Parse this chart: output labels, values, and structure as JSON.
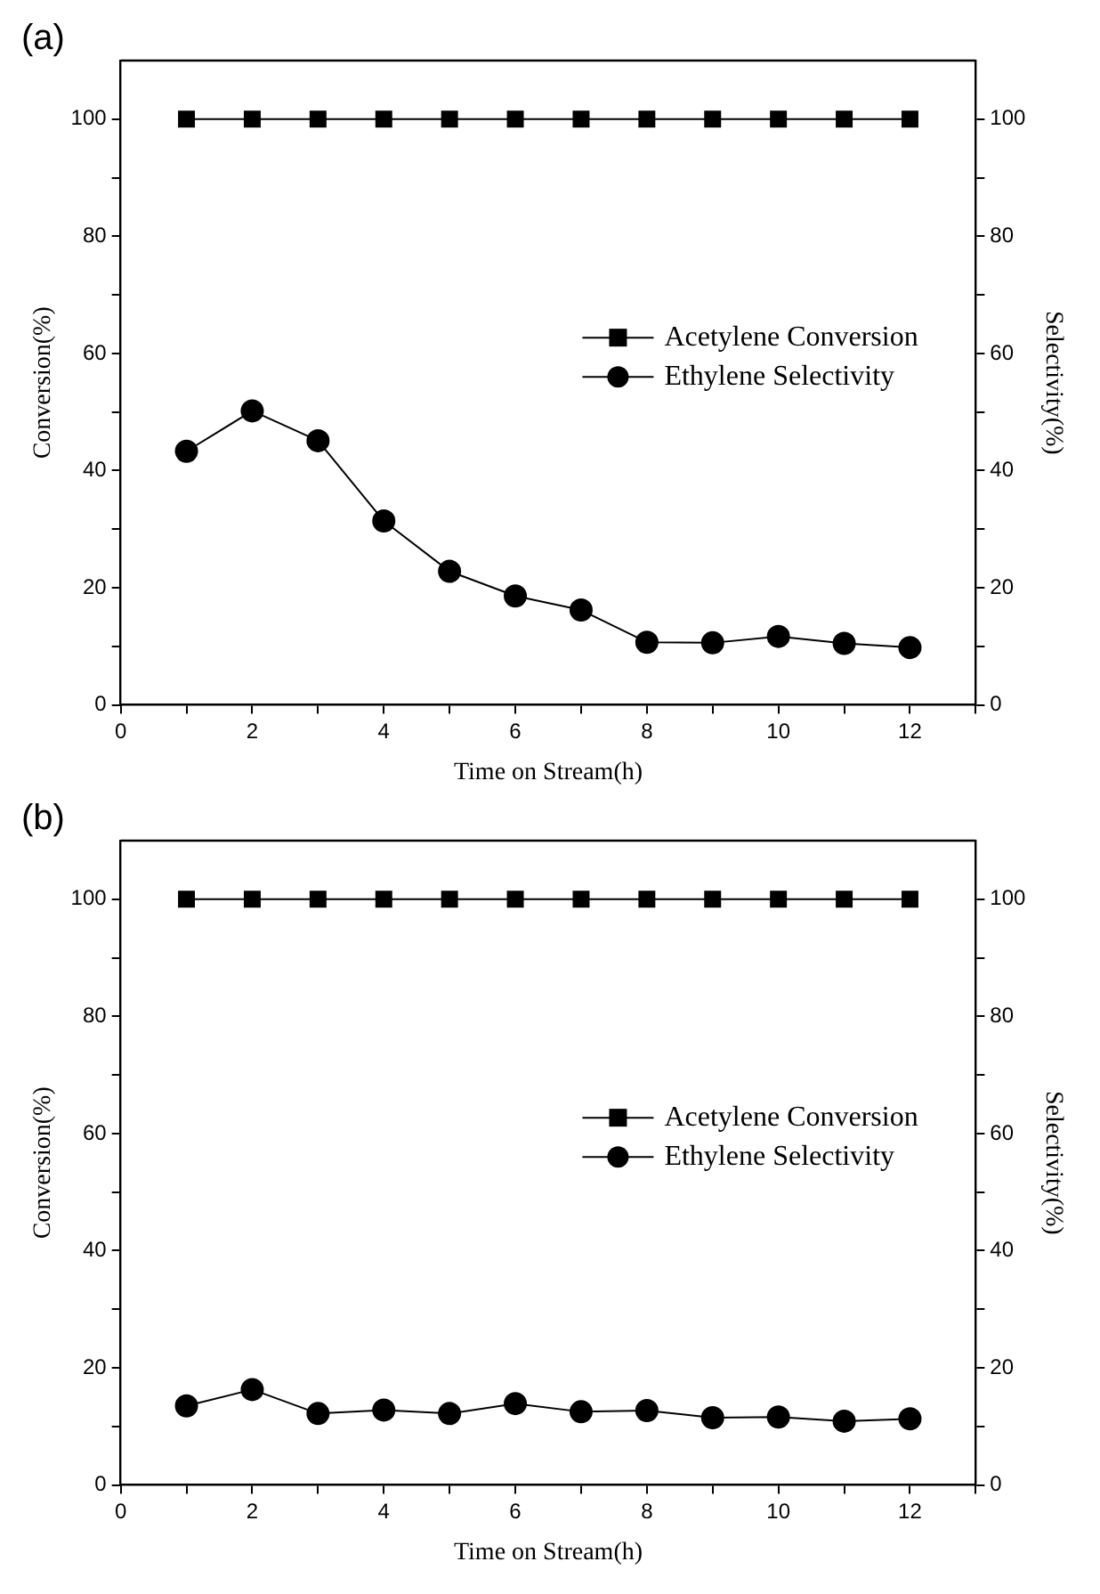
{
  "chart_data": [
    {
      "type": "line",
      "title": "(a)",
      "xlabel": "Time on Stream(h)",
      "ylabel": "Conversion(%)",
      "y2label": "Selectivity(%)",
      "x": [
        1,
        2,
        3,
        4,
        5,
        6,
        7,
        8,
        9,
        10,
        11,
        12
      ],
      "series": [
        {
          "name": "Acetylene Conversion",
          "color": "#000000",
          "marker": "square",
          "values": [
            100,
            100,
            100,
            100,
            100,
            100,
            100,
            100,
            100,
            100,
            100,
            100
          ]
        },
        {
          "name": "Ethylene Selectivity",
          "color": "#000000",
          "marker": "circle",
          "values": [
            43.3,
            50.2,
            45.1,
            31.4,
            22.8,
            18.6,
            16.2,
            10.7,
            10.6,
            11.7,
            10.5,
            9.8
          ]
        }
      ],
      "xlim": [
        0,
        13
      ],
      "xticks": [
        0,
        {
          "value": 1,
          "label": null
        },
        2,
        {
          "value": 3,
          "label": null
        },
        4,
        {
          "value": 5,
          "label": null
        },
        6,
        {
          "value": 7,
          "label": null
        },
        8,
        {
          "value": 9,
          "label": null
        },
        10,
        {
          "value": 11,
          "label": null
        },
        12,
        {
          "value": 13,
          "label": null
        }
      ],
      "ylim": [
        0,
        110
      ],
      "yticks": [
        0,
        {
          "value": 10,
          "label": null
        },
        20,
        {
          "value": 30,
          "label": null
        },
        40,
        {
          "value": 50,
          "label": null
        },
        60,
        {
          "value": 70,
          "label": null
        },
        80,
        {
          "value": 90,
          "label": null
        },
        100
      ],
      "y2lim": [
        0,
        110
      ],
      "y2ticks": [
        0,
        {
          "value": 10,
          "label": null
        },
        20,
        {
          "value": 30,
          "label": null
        },
        40,
        {
          "value": 50,
          "label": null
        },
        60,
        {
          "value": 70,
          "label": null
        },
        80,
        {
          "value": 90,
          "label": null
        },
        100
      ],
      "grid": false,
      "legend": "right",
      "line_style": "solid"
    },
    {
      "type": "line",
      "title": "(b)",
      "xlabel": "Time on Stream(h)",
      "ylabel": "Conversion(%)",
      "y2label": "Selectivity(%)",
      "x": [
        1,
        2,
        3,
        4,
        5,
        6,
        7,
        8,
        9,
        10,
        11,
        12
      ],
      "series": [
        {
          "name": "Acetylene Conversion",
          "color": "#000000",
          "marker": "square",
          "values": [
            100,
            100,
            100,
            100,
            100,
            100,
            100,
            100,
            100,
            100,
            100,
            100
          ]
        },
        {
          "name": "Ethylene Selectivity",
          "color": "#000000",
          "marker": "circle",
          "values": [
            13.5,
            16.3,
            12.2,
            12.8,
            12.2,
            13.9,
            12.5,
            12.7,
            11.5,
            11.6,
            10.9,
            11.3
          ]
        }
      ],
      "xlim": [
        0,
        13
      ],
      "xticks": [
        0,
        {
          "value": 1,
          "label": null
        },
        2,
        {
          "value": 3,
          "label": null
        },
        4,
        {
          "value": 5,
          "label": null
        },
        6,
        {
          "value": 7,
          "label": null
        },
        8,
        {
          "value": 9,
          "label": null
        },
        10,
        {
          "value": 11,
          "label": null
        },
        12,
        {
          "value": 13,
          "label": null
        }
      ],
      "ylim": [
        0,
        110
      ],
      "yticks": [
        0,
        {
          "value": 10,
          "label": null
        },
        20,
        {
          "value": 30,
          "label": null
        },
        40,
        {
          "value": 50,
          "label": null
        },
        60,
        {
          "value": 70,
          "label": null
        },
        80,
        {
          "value": 90,
          "label": null
        },
        100
      ],
      "y2lim": [
        0,
        110
      ],
      "y2ticks": [
        0,
        {
          "value": 10,
          "label": null
        },
        20,
        {
          "value": 30,
          "label": null
        },
        40,
        {
          "value": 50,
          "label": null
        },
        60,
        {
          "value": 70,
          "label": null
        },
        80,
        {
          "value": 90,
          "label": null
        },
        100
      ],
      "grid": false,
      "legend": "right",
      "line_style": "solid"
    }
  ]
}
